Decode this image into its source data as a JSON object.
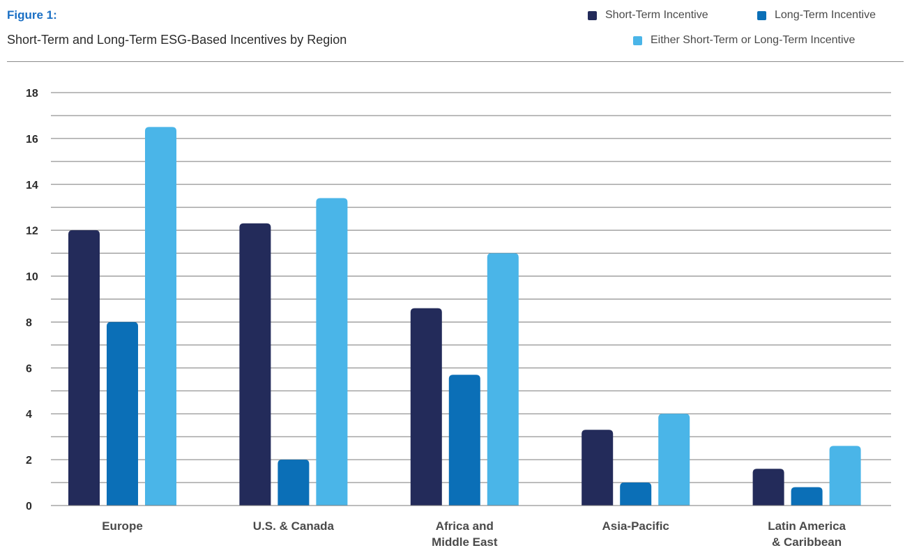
{
  "header": {
    "figure_label": "Figure 1:",
    "title": "Short-Term and Long-Term ESG-Based Incentives by Region"
  },
  "colors": {
    "short_term": "#232b5a",
    "long_term": "#0b6fb7",
    "either": "#4ab5e8",
    "figure_label": "#1a6fc4",
    "grid": "#7a7a7a"
  },
  "chart_data": {
    "type": "bar",
    "title": "Short-Term and Long-Term ESG-Based Incentives by Region",
    "categories": [
      [
        "Europe"
      ],
      [
        "U.S. & Canada"
      ],
      [
        "Africa and",
        "Middle East"
      ],
      [
        "Asia-Pacific"
      ],
      [
        "Latin America",
        "& Caribbean"
      ]
    ],
    "series": [
      {
        "name": "Short-Term Incentive",
        "color": "#232b5a",
        "values": [
          12.0,
          12.3,
          8.6,
          3.3,
          1.6
        ]
      },
      {
        "name": "Long-Term Incentive",
        "color": "#0b6fb7",
        "values": [
          8.0,
          2.0,
          5.7,
          1.0,
          0.8
        ]
      },
      {
        "name": "Either Short-Term or Long-Term Incentive",
        "color": "#4ab5e8",
        "values": [
          16.5,
          13.4,
          11.0,
          4.0,
          2.6
        ]
      }
    ],
    "ylim": [
      0,
      18
    ],
    "yticks": [
      "0",
      "2",
      "4",
      "6",
      "8",
      "10",
      "12",
      "14",
      "16",
      "18"
    ],
    "minor_gridlines": true,
    "legend_position": "top-right",
    "xlabel": "",
    "ylabel": ""
  }
}
